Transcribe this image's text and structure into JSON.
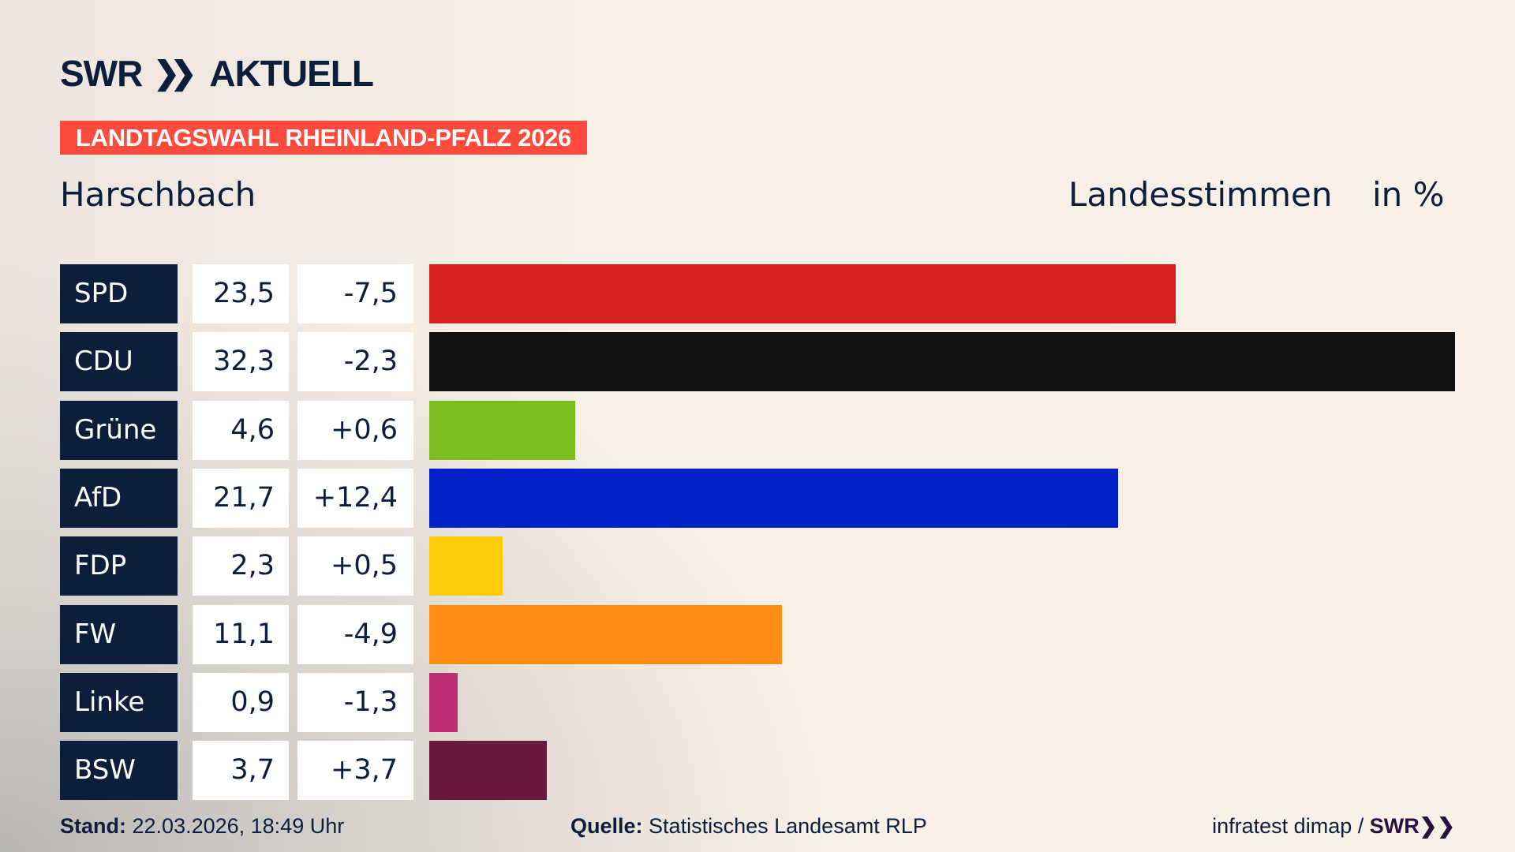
{
  "header": {
    "logo_text": "SWR AKTUELL",
    "banner": "LANDTAGSWAHL RHEINLAND-PFALZ 2026",
    "place": "Harschbach",
    "measure": "Landesstimmen",
    "unit": "in %"
  },
  "colors": {
    "banner": "#ff4b3e",
    "navy": "#0c1e3c"
  },
  "chart_data": {
    "type": "bar",
    "orientation": "horizontal",
    "xlim": [
      0,
      32.3
    ],
    "categories": [
      "SPD",
      "CDU",
      "Grüne",
      "AfD",
      "FDP",
      "FW",
      "Linke",
      "BSW"
    ],
    "values": [
      23.5,
      32.3,
      4.6,
      21.7,
      2.3,
      11.1,
      0.9,
      3.7
    ],
    "value_labels": [
      "23,5",
      "32,3",
      "4,6",
      "21,7",
      "2,3",
      "11,1",
      "0,9",
      "3,7"
    ],
    "diff_labels": [
      "-7,5",
      "-2,3",
      "+0,6",
      "+12,4",
      "+0,5",
      "-4,9",
      "-1,3",
      "+3,7"
    ],
    "diffs": [
      -7.5,
      -2.3,
      0.6,
      12.4,
      0.5,
      -4.9,
      -1.3,
      3.7
    ],
    "colors": [
      "#d81f1f",
      "#121212",
      "#7abd1d",
      "#0021c8",
      "#ffcc0a",
      "#ff8c17",
      "#bd2d74",
      "#6a1840"
    ]
  },
  "footer": {
    "stand_label": "Stand:",
    "stand_value": "22.03.2026, 18:49 Uhr",
    "source_label": "Quelle:",
    "source_value": "Statistisches Landesamt RLP",
    "credit": "infratest dimap /",
    "credit_logo": "SWR"
  }
}
